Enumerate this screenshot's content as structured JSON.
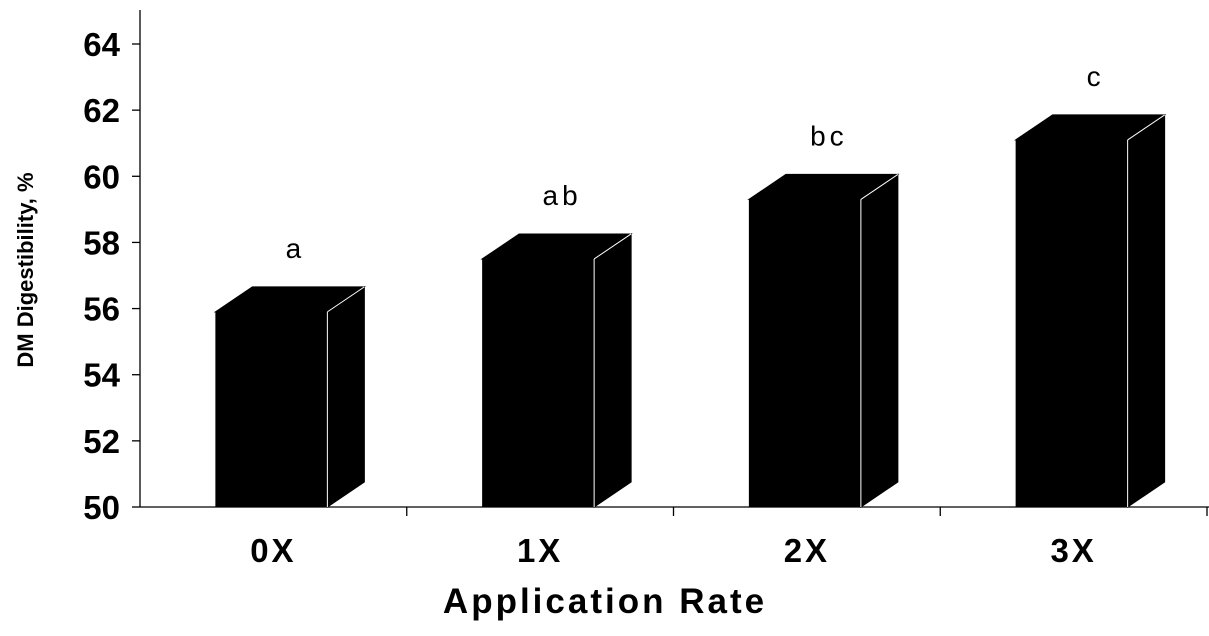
{
  "chart_data": {
    "type": "bar",
    "title": "",
    "xlabel": "Application Rate",
    "ylabel": "DM Digestibility, %",
    "categories": [
      "0X",
      "1X",
      "2X",
      "3X"
    ],
    "values": [
      55.9,
      57.5,
      59.3,
      61.1
    ],
    "significance_letters": [
      "a",
      "ab",
      "bc",
      "c"
    ],
    "ylim": [
      50,
      64
    ],
    "yticks": [
      "50",
      "52",
      "54",
      "56",
      "58",
      "60",
      "62",
      "64"
    ],
    "grid": false,
    "bar_color": "#000000",
    "bar_style": "3d-box"
  }
}
